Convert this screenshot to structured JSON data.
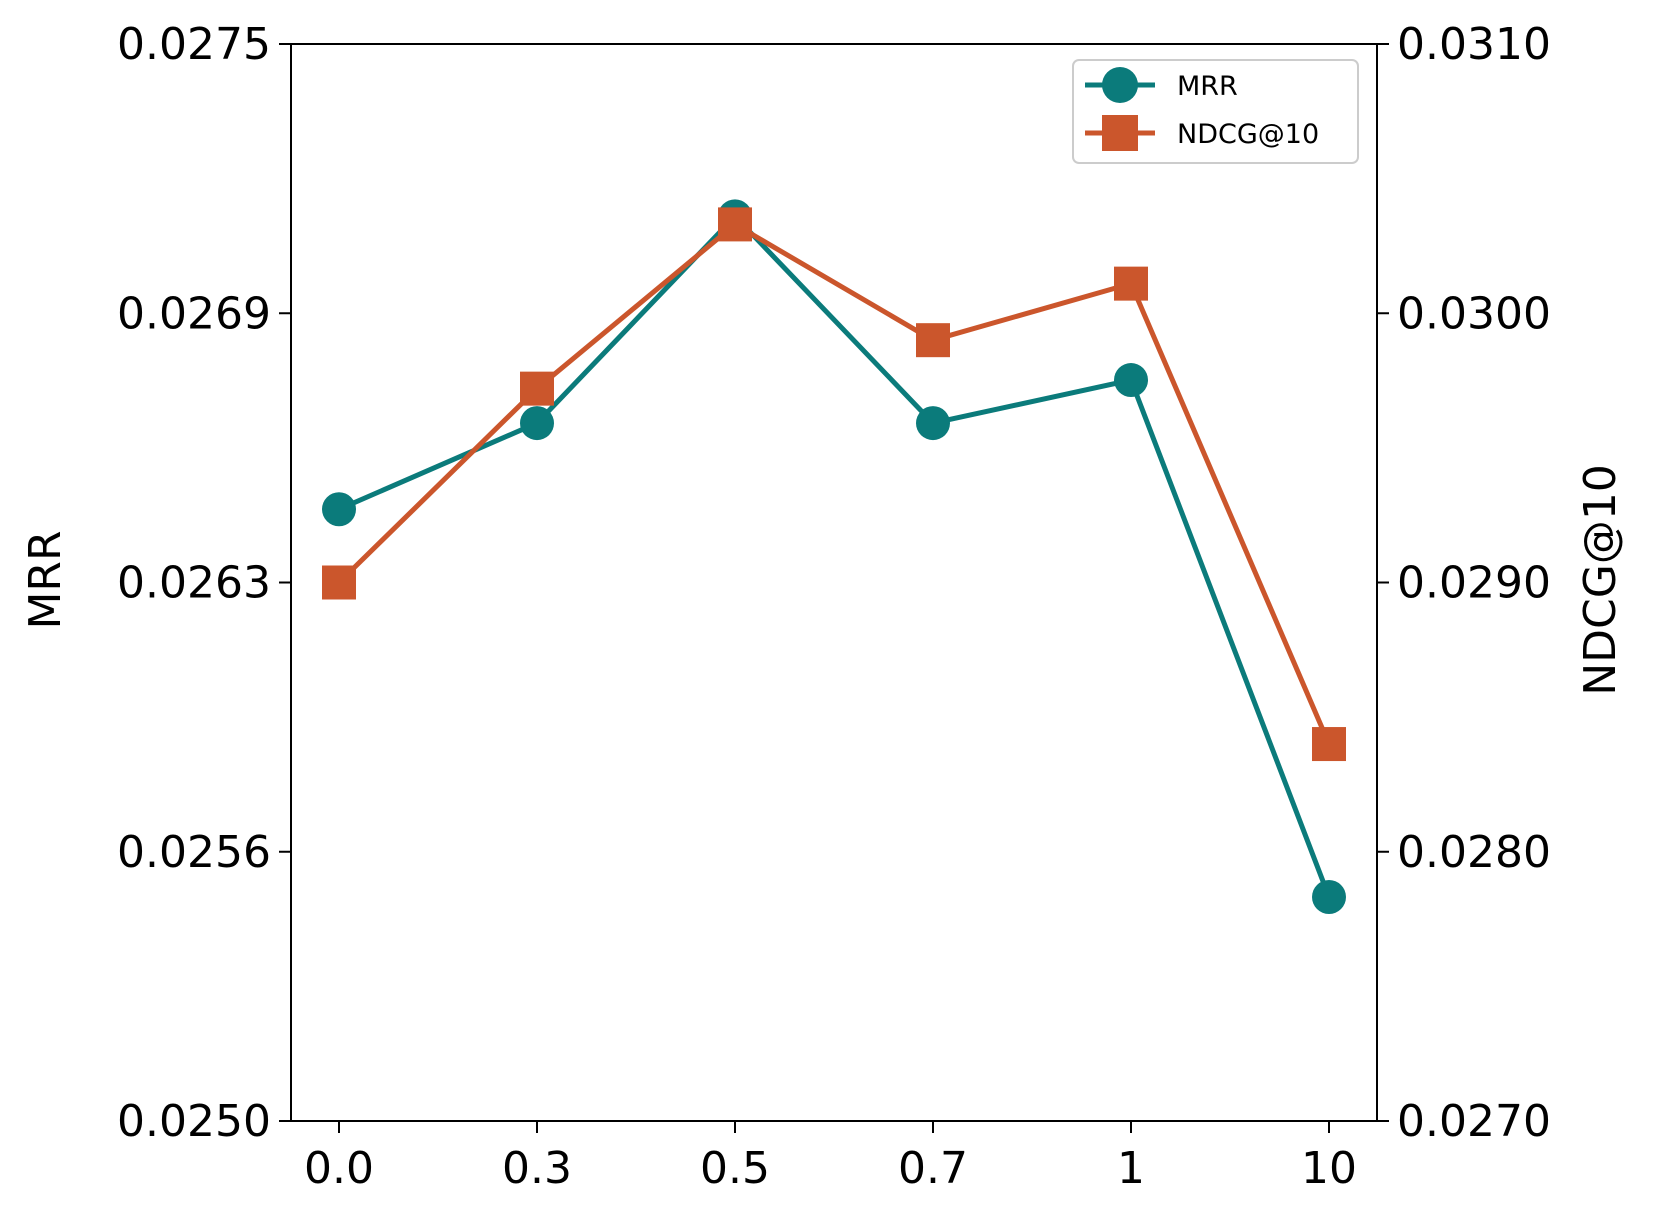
{
  "chart_data": {
    "type": "line",
    "title": "",
    "categories": [
      "0.0",
      "0.3",
      "0.5",
      "0.7",
      "1",
      "10"
    ],
    "xlabel": "",
    "ylabel": "MRR",
    "y2label": "NDCG@10",
    "ylim": [
      0.025,
      0.0275
    ],
    "y2lim": [
      0.027,
      0.031
    ],
    "yticks": [
      "0.0250",
      "0.0256",
      "0.0263",
      "0.0269",
      "0.0275"
    ],
    "y2ticks": [
      "0.0270",
      "0.0280",
      "0.0290",
      "0.0300",
      "0.0310"
    ],
    "grid": false,
    "legend_position": "top-right",
    "series": [
      {
        "name": "MRR",
        "axis": "left",
        "marker": "circle",
        "color": "#0b7b7b",
        "values": [
          0.02642,
          0.02662,
          0.0271,
          0.02662,
          0.02672,
          0.02552
        ]
      },
      {
        "name": "NDCG@10",
        "axis": "right",
        "marker": "square",
        "color": "#cb562c",
        "values": [
          0.029,
          0.02972,
          0.03033,
          0.0299,
          0.03011,
          0.0284
        ]
      }
    ]
  }
}
